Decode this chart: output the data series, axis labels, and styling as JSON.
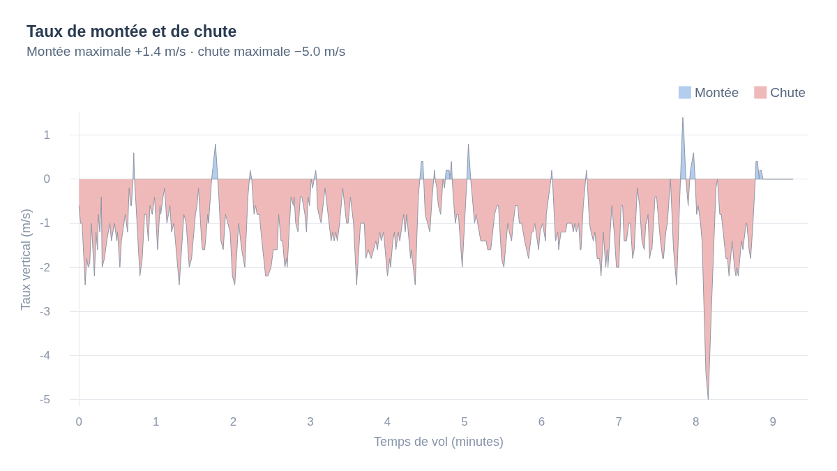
{
  "chart_data": {
    "type": "area",
    "title": "Taux de montée et de chute",
    "subtitle": "Montée maximale +1.4 m/s · chute maximale −5.0 m/s",
    "xlabel": "Temps de vol (minutes)",
    "ylabel": "Taux vertical (m/s)",
    "xlim": [
      -0.12,
      9.45
    ],
    "xticks": [
      0,
      1,
      2,
      3,
      4,
      5,
      6,
      7,
      8,
      9
    ],
    "ylim": [
      -5.15,
      1.5
    ],
    "yticks": [
      -5,
      -4,
      -3,
      -2,
      -1,
      0,
      1
    ],
    "grid": "y",
    "legend": "top right",
    "marker": "none",
    "x": [
      0,
      0.02,
      0.04,
      0.08,
      0.1,
      0.12,
      0.14,
      0.16,
      0.2,
      0.22,
      0.24,
      0.25,
      0.27,
      0.29,
      0.3,
      0.33,
      0.36,
      0.4,
      0.42,
      0.46,
      0.49,
      0.5,
      0.53,
      0.55,
      0.6,
      0.63,
      0.65,
      0.67,
      0.68,
      0.7,
      0.71,
      0.72,
      0.74,
      0.79,
      0.82,
      0.85,
      0.87,
      0.9,
      0.92,
      0.95,
      0.98,
      1.02,
      1.05,
      1.06,
      1.09,
      1.11,
      1.14,
      1.16,
      1.18,
      1.2,
      1.23,
      1.3,
      1.36,
      1.39,
      1.43,
      1.46,
      1.51,
      1.53,
      1.55,
      1.59,
      1.6,
      1.63,
      1.67,
      1.68,
      1.72,
      1.77,
      1.8,
      1.82,
      1.84,
      1.87,
      1.9,
      1.93,
      1.96,
      1.99,
      2.02,
      2.07,
      2.11,
      2.15,
      2.19,
      2.21,
      2.22,
      2.24,
      2.27,
      2.29,
      2.31,
      2.34,
      2.36,
      2.42,
      2.45,
      2.49,
      2.52,
      2.57,
      2.59,
      2.62,
      2.64,
      2.67,
      2.69,
      2.7,
      2.75,
      2.78,
      2.79,
      2.81,
      2.84,
      2.87,
      2.89,
      2.93,
      2.95,
      2.97,
      2.99,
      3.01,
      3.03,
      3.05,
      3.07,
      3.08,
      3.09,
      3.11,
      3.14,
      3.19,
      3.27,
      3.29,
      3.31,
      3.33,
      3.35,
      3.38,
      3.42,
      3.47,
      3.49,
      3.52,
      3.56,
      3.6,
      3.65,
      3.7,
      3.72,
      3.75,
      3.79,
      3.82,
      3.85,
      3.87,
      3.9,
      3.92,
      3.95,
      4.0,
      4.03,
      4.04,
      4.07,
      4.09,
      4.11,
      4.14,
      4.16,
      4.21,
      4.23,
      4.25,
      4.3,
      4.31,
      4.36,
      4.4,
      4.42,
      4.44,
      4.46,
      4.47,
      4.49,
      4.55,
      4.58,
      4.6,
      4.61,
      4.62,
      4.64,
      4.66,
      4.69,
      4.72,
      4.74,
      4.75,
      4.76,
      4.8,
      4.81,
      4.83,
      4.84,
      4.85,
      4.88,
      4.9,
      4.92,
      4.97,
      5.03,
      5.05,
      5.08,
      5.13,
      5.15,
      5.21,
      5.28,
      5.3,
      5.34,
      5.39,
      5.42,
      5.44,
      5.48,
      5.51,
      5.56,
      5.58,
      5.61,
      5.63,
      5.66,
      5.69,
      5.71,
      5.74,
      5.78,
      5.83,
      5.87,
      5.89,
      5.91,
      5.96,
      5.98,
      6.01,
      6.05,
      6.06,
      6.12,
      6.13,
      6.14,
      6.18,
      6.21,
      6.22,
      6.25,
      6.31,
      6.33,
      6.39,
      6.41,
      6.43,
      6.45,
      6.48,
      6.5,
      6.51,
      6.54,
      6.57,
      6.58,
      6.59,
      6.62,
      6.64,
      6.67,
      6.69,
      6.72,
      6.75,
      6.77,
      6.8,
      6.83,
      6.85,
      6.86,
      6.91,
      6.94,
      6.97,
      7.0,
      7.03,
      7.05,
      7.07,
      7.1,
      7.13,
      7.15,
      7.18,
      7.2,
      7.24,
      7.27,
      7.3,
      7.33,
      7.35,
      7.36,
      7.38,
      7.4,
      7.42,
      7.43,
      7.47,
      7.49,
      7.54,
      7.57,
      7.58,
      7.61,
      7.63,
      7.67,
      7.71,
      7.75,
      7.8,
      7.83,
      7.84,
      7.87,
      7.9,
      7.92,
      7.93,
      7.97,
      7.99,
      8.01,
      8.03,
      8.06,
      8.08,
      8.13,
      8.16,
      8.2,
      8.26,
      8.28,
      8.31,
      8.33,
      8.39,
      8.41,
      8.43,
      8.47,
      8.5,
      8.52,
      8.53,
      8.55,
      8.59,
      8.61,
      8.65,
      8.66,
      8.69,
      8.71,
      8.74,
      8.77,
      8.78,
      8.8,
      8.82,
      8.83,
      8.85,
      8.87,
      9.26
    ],
    "series": [
      {
        "name": "Montée",
        "color": "#b3cdee",
        "x": [
          0.7,
          0.71,
          0.72,
          1.72,
          1.77,
          1.8,
          2.21,
          2.22,
          2.24,
          3.05,
          3.07,
          3.08,
          4.42,
          4.44,
          4.46,
          4.47,
          4.6,
          4.61,
          4.62,
          4.75,
          4.76,
          4.8,
          4.81,
          4.83,
          4.84,
          5.03,
          5.05,
          5.08,
          6.12,
          6.13,
          6.14,
          6.57,
          6.58,
          6.59,
          7.8,
          7.83,
          7.84,
          7.87,
          7.92,
          7.93,
          7.97,
          7.99,
          8.77,
          8.78,
          8.8,
          8.82,
          8.83,
          8.85,
          8.87,
          9.26
        ],
        "values": [
          0,
          0.6,
          0,
          0,
          0.8,
          0,
          0,
          0.2,
          0,
          0,
          0.2,
          0,
          0,
          0.4,
          0.4,
          0,
          0,
          0.2,
          0,
          0,
          0.2,
          0.2,
          0,
          0.4,
          0,
          0,
          0.8,
          0,
          0,
          0.2,
          0,
          0,
          0.2,
          0,
          0,
          1.4,
          1.2,
          0,
          0,
          0.2,
          0.6,
          0,
          0,
          0.4,
          0.4,
          0,
          0.2,
          0.2,
          0,
          0
        ]
      },
      {
        "name": "Chute",
        "color": "#f0b9b9",
        "values": [
          -0.6,
          -1.0,
          -1.0,
          -2.4,
          -1.8,
          -2.0,
          -1.9,
          -1.0,
          -2.2,
          -1.2,
          -1.6,
          -0.8,
          -1.2,
          -0.4,
          -2.0,
          -1.8,
          -1.4,
          -1.0,
          -1.4,
          -1.0,
          -1.4,
          -1.2,
          -2.0,
          -1.4,
          -0.8,
          -1.2,
          -0.2,
          -0.6,
          -0.6,
          0,
          0,
          0,
          -0.6,
          -2.2,
          -1.8,
          -0.8,
          -0.8,
          -1.4,
          -0.6,
          -0.8,
          -0.4,
          -1.6,
          -0.6,
          -0.8,
          -0.4,
          -0.2,
          -1.0,
          -0.8,
          -0.6,
          -1.2,
          -1.0,
          -2.4,
          -0.8,
          -1.0,
          -2.0,
          -1.8,
          -0.8,
          -0.6,
          -0.2,
          -1.4,
          -1.6,
          -1.6,
          -0.8,
          -1.0,
          0,
          0,
          0,
          -0.6,
          -1.4,
          -1.6,
          -0.8,
          -1.0,
          -1.2,
          -2.2,
          -2.4,
          -1.0,
          -1.6,
          -2.0,
          -0.4,
          0,
          0,
          0,
          -0.8,
          -0.6,
          -0.8,
          -0.8,
          -1.2,
          -2.2,
          -2.2,
          -2.0,
          -1.6,
          -1.6,
          -0.8,
          -1.4,
          -1.4,
          -2.0,
          -1.8,
          -2.0,
          -0.4,
          -0.6,
          -0.4,
          -1.0,
          -1.2,
          -0.4,
          -0.4,
          -0.8,
          -1.2,
          -0.4,
          -0.6,
          0,
          -0.2,
          0,
          0,
          0,
          -0.6,
          -0.8,
          -1.0,
          -0.2,
          -1.4,
          -1.2,
          -1.4,
          -1.2,
          -1.4,
          -1.0,
          -0.2,
          -1.0,
          -1.0,
          -0.4,
          -1.0,
          -2.4,
          -1.0,
          -1.0,
          -1.8,
          -1.6,
          -1.8,
          -1.6,
          -1.4,
          -1.6,
          -1.2,
          -1.4,
          -1.2,
          -2.2,
          -1.8,
          -2.0,
          -1.4,
          -1.2,
          -1.6,
          -1.2,
          -1.4,
          -0.8,
          -1.2,
          -0.8,
          -1.8,
          -1.6,
          -2.4,
          -0.4,
          0,
          0,
          0,
          0,
          -0.8,
          -1.2,
          -0.4,
          0,
          0,
          0,
          -0.2,
          -0.6,
          -0.8,
          0,
          -0.2,
          0,
          0,
          0,
          0,
          0,
          0,
          -0.3,
          -1.0,
          -0.8,
          -0.8,
          -2.0,
          0,
          0,
          0,
          -1.0,
          -0.8,
          -1.4,
          -1.4,
          -1.6,
          -1.6,
          -0.8,
          -0.6,
          -0.6,
          -1.8,
          -2.0,
          -1.0,
          -1.2,
          -1.4,
          -1.0,
          -0.6,
          -0.6,
          -1.0,
          -1.0,
          -1.4,
          -1.8,
          -1.2,
          -1.2,
          -1.0,
          -1.6,
          -1.2,
          -1.0,
          -1.4,
          -0.8,
          0,
          0,
          0,
          -1.4,
          -1.2,
          -1.6,
          -1.2,
          -1.2,
          -1.0,
          -1.0,
          -1.2,
          -1.0,
          -1.2,
          -1.0,
          -1.6,
          -1.6,
          -0.6,
          0,
          0,
          0,
          -1.0,
          -1.2,
          -1.4,
          -1.2,
          -1.8,
          -1.8,
          -2.2,
          -1.2,
          -2.0,
          -1.6,
          -2.0,
          -0.6,
          -1.2,
          -2.0,
          -2.0,
          -0.6,
          -0.6,
          -1.4,
          -1.4,
          -1.0,
          -1.0,
          -1.8,
          -1.6,
          -0.2,
          -0.6,
          -1.4,
          -1.6,
          -1.0,
          -1.0,
          -0.8,
          -1.8,
          -1.6,
          -1.6,
          -0.4,
          -0.4,
          -1.4,
          -1.8,
          -1.8,
          -1.2,
          -1.0,
          0,
          -1.6,
          -2.4,
          0,
          0,
          0,
          0,
          -0.6,
          0,
          0,
          0,
          0,
          -0.8,
          -0.6,
          -1.0,
          -1.4,
          -4.4,
          -5.0,
          -3.0,
          -0.2,
          0,
          -0.8,
          -0.8,
          -1.8,
          -1.8,
          -2.2,
          -1.4,
          -2.0,
          -2.2,
          -2.0,
          -2.2,
          -1.4,
          -1.6,
          -1.0,
          -1.0,
          -1.6,
          -1.8,
          -1.0,
          0,
          0,
          0,
          0,
          0,
          0,
          0,
          0
        ]
      }
    ]
  }
}
